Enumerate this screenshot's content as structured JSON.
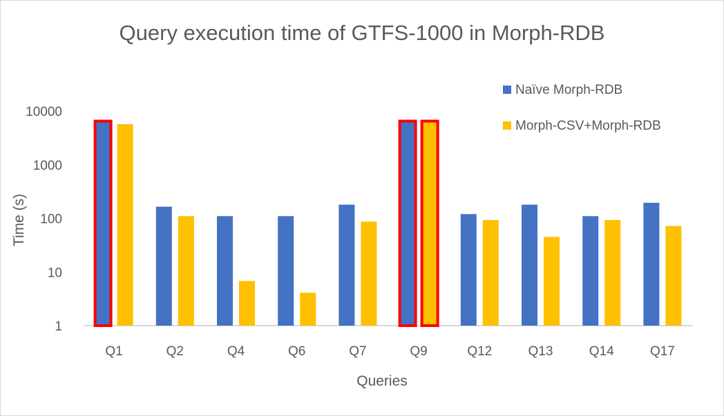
{
  "chart_data": {
    "type": "bar",
    "title": "Query execution time of GTFS-1000 in Morph-RDB",
    "xlabel": "Queries",
    "ylabel": "Time (s)",
    "yscale": "log",
    "ylim": [
      1,
      10000
    ],
    "yticks": [
      "1",
      "10",
      "100",
      "1000",
      "10000"
    ],
    "categories": [
      "Q1",
      "Q2",
      "Q4",
      "Q6",
      "Q7",
      "Q9",
      "Q12",
      "Q13",
      "Q14",
      "Q17"
    ],
    "series": [
      {
        "name": "Naïve Morph-RDB",
        "color": "#4472C4",
        "values": [
          6500,
          165,
          110,
          110,
          180,
          6500,
          120,
          180,
          110,
          195
        ],
        "highlighted": [
          true,
          false,
          false,
          false,
          false,
          true,
          false,
          false,
          false,
          false
        ]
      },
      {
        "name": "Morph-CSV+Morph-RDB",
        "color": "#FFC000",
        "values": [
          5700,
          110,
          6.8,
          4.1,
          87,
          6500,
          93,
          45,
          93,
          72
        ],
        "highlighted": [
          false,
          false,
          false,
          false,
          false,
          true,
          false,
          false,
          false,
          false
        ]
      }
    ],
    "highlight_color": "#FF0000",
    "legend_position": "top-right",
    "grid": false
  }
}
